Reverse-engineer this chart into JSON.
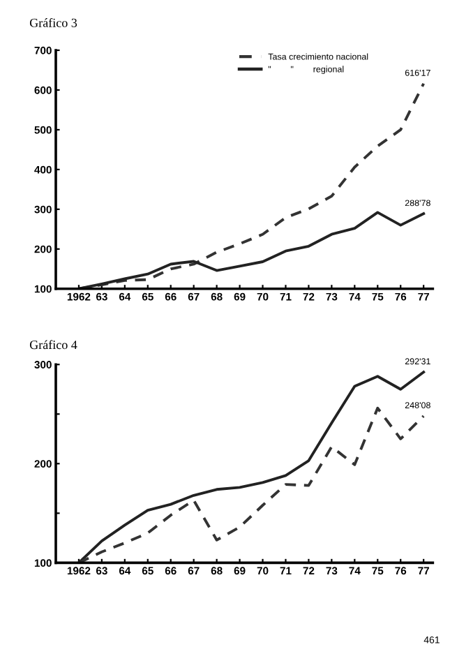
{
  "chart_data": [
    {
      "type": "line",
      "title": "Gráfico 3",
      "categories": [
        "1962",
        "63",
        "64",
        "65",
        "66",
        "67",
        "68",
        "69",
        "70",
        "71",
        "72",
        "73",
        "74",
        "75",
        "76",
        "77"
      ],
      "series": [
        {
          "name": "Tasa crecimiento nacional",
          "color": "#333333",
          "line_style": "dashed",
          "values": [
            100,
            110,
            121,
            123,
            150,
            162,
            192,
            213,
            237,
            279,
            301,
            333,
            406,
            459,
            500,
            616.17
          ]
        },
        {
          "name": "\"        \"        regional",
          "color": "#222222",
          "line_style": "solid",
          "values": [
            100,
            112,
            125,
            137,
            162,
            169,
            146,
            157,
            168,
            195,
            207,
            237,
            252,
            292,
            260,
            288.78
          ]
        }
      ],
      "ylim": [
        100,
        700
      ],
      "yticks": [
        100,
        200,
        300,
        400,
        500,
        600,
        700
      ],
      "grid": false,
      "legend": "top right",
      "marker": "none",
      "annotations": [
        {
          "text": "616'17",
          "x": "77",
          "y": 616.17
        },
        {
          "text": "288'78",
          "x": "77",
          "y": 288.78
        }
      ]
    },
    {
      "type": "line",
      "title": "Gráfico 4",
      "categories": [
        "1962",
        "63",
        "64",
        "65",
        "66",
        "67",
        "68",
        "69",
        "70",
        "71",
        "72",
        "73",
        "74",
        "75",
        "76",
        "77"
      ],
      "series": [
        {
          "color": "#222222",
          "line_style": "solid",
          "values": [
            100,
            122,
            138,
            153,
            159,
            168,
            174,
            176,
            181,
            188,
            203,
            241,
            278,
            288,
            275,
            292.31
          ]
        },
        {
          "color": "#333333",
          "line_style": "dashed",
          "values": [
            100,
            111,
            120,
            130,
            148,
            163,
            123,
            136,
            158,
            179,
            178,
            217,
            199,
            256,
            225,
            248.08
          ]
        }
      ],
      "ylim": [
        100,
        300
      ],
      "yticks": [
        100,
        {
          "value": 150,
          "label": null
        },
        200,
        {
          "value": 250,
          "label": null
        },
        300
      ],
      "grid": false,
      "legend": false,
      "marker": "none",
      "annotations": [
        {
          "text": "292'31",
          "x": "77",
          "y": 292.31
        },
        {
          "text": "248'08",
          "x": "77",
          "y": 248.08
        },
        "461"
      ]
    }
  ]
}
